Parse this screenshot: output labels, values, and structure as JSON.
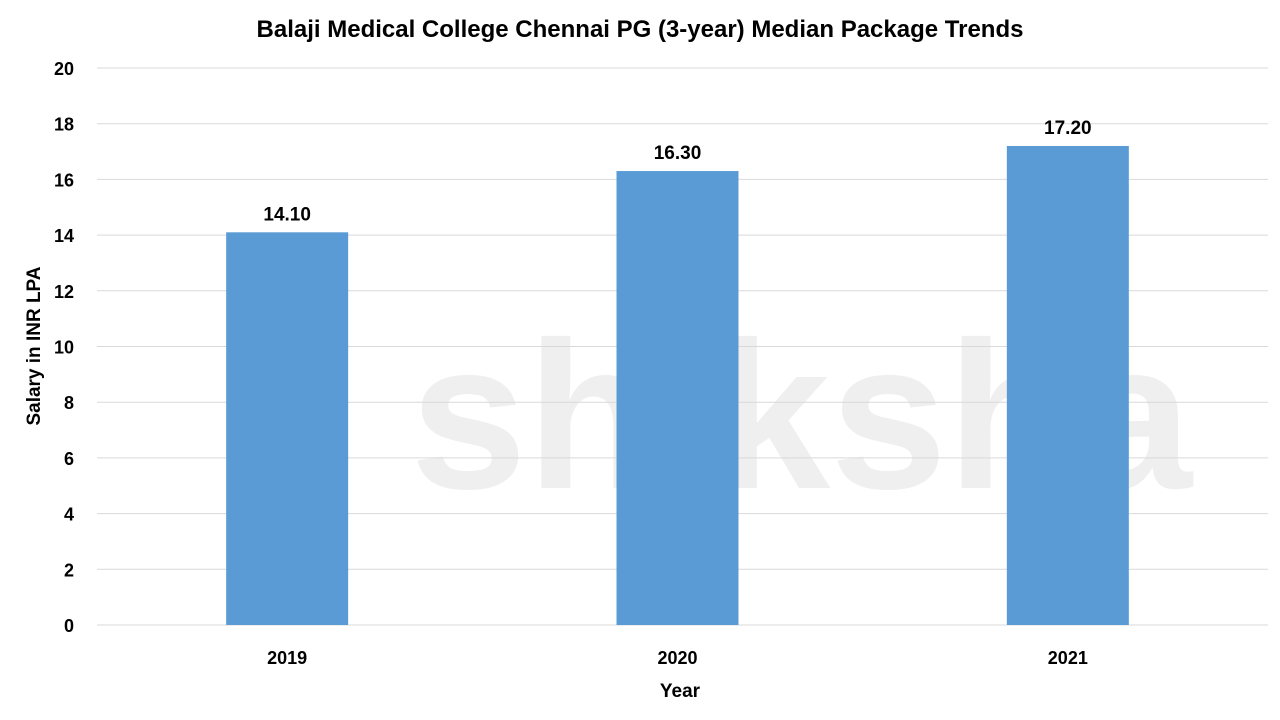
{
  "chart_data": {
    "type": "bar",
    "title": "Balaji Medical College Chennai PG (3-year) Median Package Trends",
    "xlabel": "Year",
    "ylabel": "Salary in INR LPA",
    "categories": [
      "2019",
      "2020",
      "2021"
    ],
    "values": [
      14.1,
      16.3,
      17.2
    ],
    "data_labels": [
      "14.10",
      "16.30",
      "17.20"
    ],
    "ylim": [
      0,
      20
    ],
    "yticks": [
      "0",
      "2",
      "4",
      "6",
      "8",
      "10",
      "12",
      "14",
      "16",
      "18",
      "20"
    ],
    "grid": true,
    "bar_color": "#5B9BD5",
    "grid_color": "#D9D9D9"
  },
  "watermark": "shiksha"
}
